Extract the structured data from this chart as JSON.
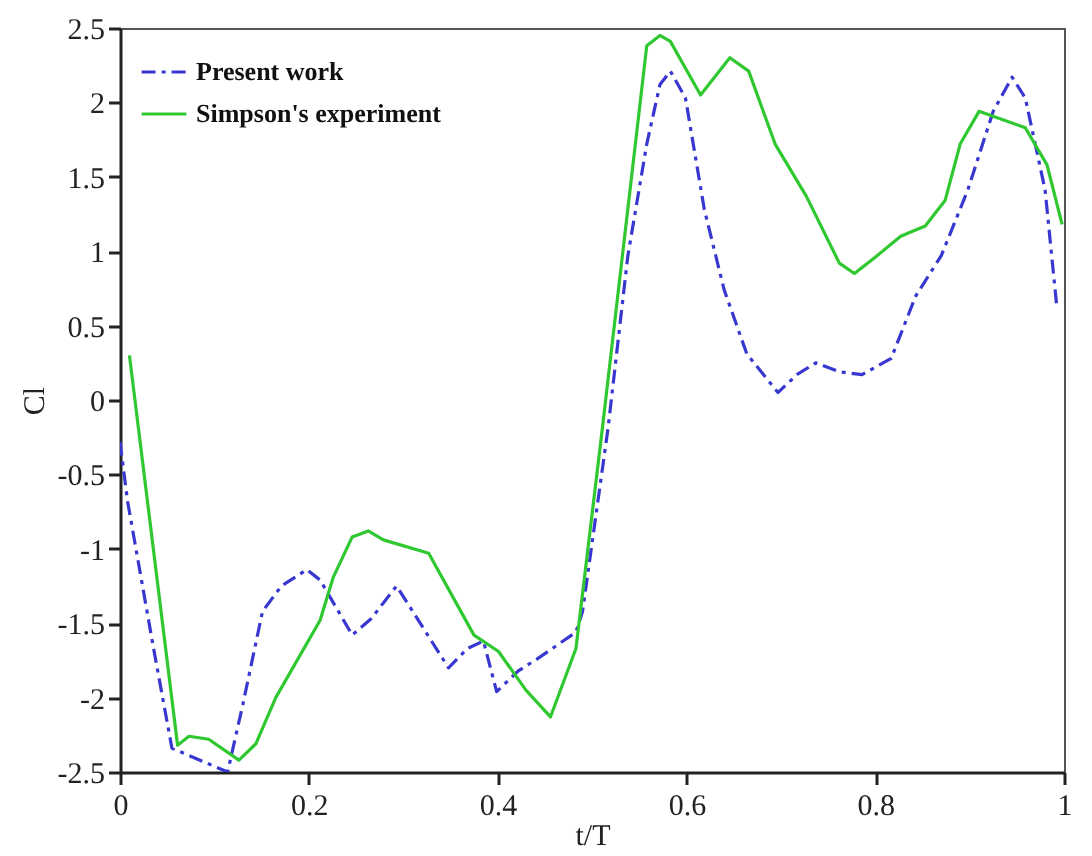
{
  "chart_data": {
    "type": "line",
    "xlabel": "t/T",
    "ylabel": "Cl",
    "xlim": [
      0,
      1
    ],
    "ylim": [
      -2.5,
      2.5
    ],
    "xticks": [
      0,
      0.2,
      0.4,
      0.6,
      0.8,
      1
    ],
    "yticks": [
      -2.5,
      -2,
      -1.5,
      -1,
      -0.5,
      0,
      0.5,
      1,
      1.5,
      2,
      2.5
    ],
    "grid": false,
    "legend": "top left",
    "marker": "none",
    "series": [
      {
        "name": "Present work",
        "color": "#3838d0",
        "line_style": "dashed",
        "x": [
          0,
          0.008,
          0.035,
          0.055,
          0.114,
          0.13,
          0.151,
          0.171,
          0.198,
          0.212,
          0.246,
          0.266,
          0.293,
          0.32,
          0.348,
          0.368,
          0.385,
          0.399,
          0.422,
          0.442,
          0.483,
          0.49,
          0.517,
          0.538,
          0.558,
          0.572,
          0.583,
          0.599,
          0.619,
          0.64,
          0.664,
          0.697,
          0.717,
          0.737,
          0.762,
          0.786,
          0.817,
          0.843,
          0.87,
          0.898,
          0.925,
          0.945,
          0.959,
          0.98,
          0.992
        ],
        "values": [
          -0.28,
          -0.68,
          -1.65,
          -2.34,
          -2.5,
          -2.05,
          -1.42,
          -1.25,
          -1.14,
          -1.21,
          -1.58,
          -1.47,
          -1.25,
          -1.52,
          -1.8,
          -1.67,
          -1.62,
          -1.96,
          -1.82,
          -1.74,
          -1.56,
          -1.42,
          -0.19,
          0.97,
          1.72,
          2.12,
          2.21,
          2.03,
          1.28,
          0.74,
          0.31,
          0.05,
          0.17,
          0.25,
          0.19,
          0.17,
          0.28,
          0.7,
          0.97,
          1.41,
          1.94,
          2.17,
          2.03,
          1.41,
          0.65
        ]
      },
      {
        "name": "Simpson's experiment",
        "color": "#30c830",
        "line_style": "solid",
        "x": [
          0.01,
          0.061,
          0.073,
          0.094,
          0.126,
          0.144,
          0.165,
          0.212,
          0.226,
          0.246,
          0.263,
          0.279,
          0.327,
          0.354,
          0.375,
          0.401,
          0.43,
          0.456,
          0.483,
          0.511,
          0.558,
          0.572,
          0.583,
          0.615,
          0.646,
          0.666,
          0.694,
          0.727,
          0.762,
          0.778,
          0.802,
          0.827,
          0.853,
          0.874,
          0.89,
          0.91,
          0.959,
          0.982,
          0.998
        ],
        "values": [
          0.3,
          -2.32,
          -2.26,
          -2.28,
          -2.42,
          -2.31,
          -2.0,
          -1.48,
          -1.19,
          -0.92,
          -0.88,
          -0.94,
          -1.03,
          -1.34,
          -1.58,
          -1.69,
          -1.95,
          -2.13,
          -1.67,
          -0.19,
          2.38,
          2.45,
          2.41,
          2.05,
          2.3,
          2.21,
          1.72,
          1.37,
          0.92,
          0.85,
          0.97,
          1.1,
          1.17,
          1.34,
          1.72,
          1.94,
          1.83,
          1.58,
          1.18
        ]
      }
    ]
  }
}
